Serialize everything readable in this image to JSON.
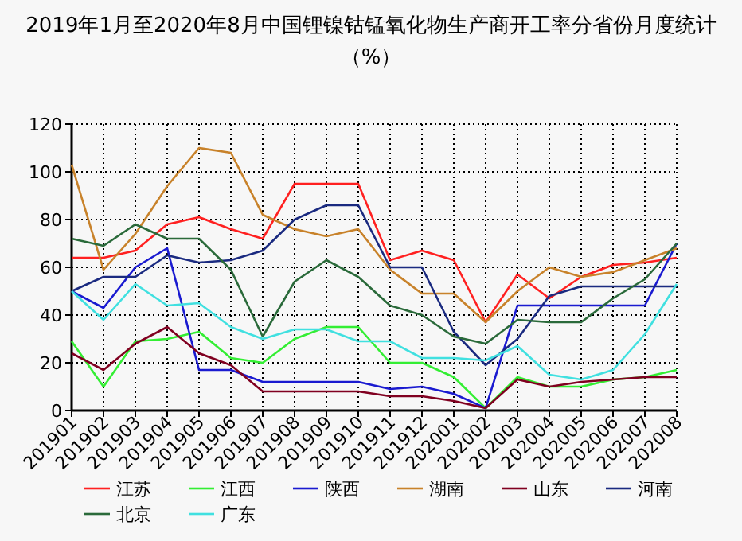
{
  "chart_data": {
    "type": "line",
    "title": "2019年1月至2020年8月中国锂镍钴锰氧化物生产商开工率分省份月度统计（%）",
    "categories": [
      "201901",
      "201902",
      "201903",
      "201904",
      "201905",
      "201906",
      "201907",
      "201908",
      "201909",
      "201910",
      "201911",
      "201912",
      "202001",
      "202002",
      "202003",
      "202004",
      "202005",
      "202006",
      "202007",
      "202008"
    ],
    "series": [
      {
        "name": "江苏",
        "color": "#ff2020",
        "values": [
          64,
          64,
          67,
          78,
          81,
          76,
          72,
          95,
          95,
          95,
          63,
          67,
          63,
          37,
          57,
          47,
          56,
          61,
          62,
          64
        ]
      },
      {
        "name": "江西",
        "color": "#33ee33",
        "values": [
          29,
          10,
          29,
          30,
          33,
          22,
          20,
          30,
          35,
          35,
          20,
          20,
          14,
          1,
          14,
          10,
          10,
          13,
          14,
          17
        ]
      },
      {
        "name": "陕西",
        "color": "#1a1ad0",
        "values": [
          50,
          43,
          60,
          68,
          17,
          17,
          12,
          12,
          12,
          12,
          9,
          10,
          7,
          1,
          44,
          44,
          44,
          44,
          44,
          70
        ]
      },
      {
        "name": "湖南",
        "color": "#c8822a",
        "values": [
          103,
          59,
          74,
          94,
          110,
          108,
          82,
          76,
          73,
          76,
          59,
          49,
          49,
          37,
          50,
          60,
          56,
          58,
          63,
          68
        ]
      },
      {
        "name": "山东",
        "color": "#800020",
        "values": [
          24,
          17,
          28,
          35,
          24,
          19,
          8,
          8,
          8,
          8,
          6,
          6,
          4,
          1,
          13,
          10,
          12,
          13,
          14,
          14
        ]
      },
      {
        "name": "河南",
        "color": "#1a2a80",
        "values": [
          50,
          56,
          56,
          65,
          62,
          63,
          67,
          80,
          86,
          86,
          60,
          60,
          33,
          19,
          30,
          48,
          52,
          52,
          52,
          52
        ]
      },
      {
        "name": "北京",
        "color": "#2a6a3a",
        "values": [
          72,
          69,
          78,
          72,
          72,
          59,
          31,
          54,
          63,
          56,
          44,
          40,
          31,
          28,
          38,
          37,
          37,
          47,
          55,
          70
        ]
      },
      {
        "name": "广东",
        "color": "#40e0e0",
        "values": [
          50,
          38,
          53,
          44,
          45,
          35,
          30,
          34,
          34,
          29,
          29,
          22,
          22,
          21,
          27,
          15,
          13,
          17,
          32,
          53
        ]
      }
    ],
    "ylim": [
      0,
      120
    ],
    "yticks": [
      0,
      20,
      40,
      60,
      80,
      100,
      120
    ],
    "grid": true,
    "legend": "bottom"
  }
}
